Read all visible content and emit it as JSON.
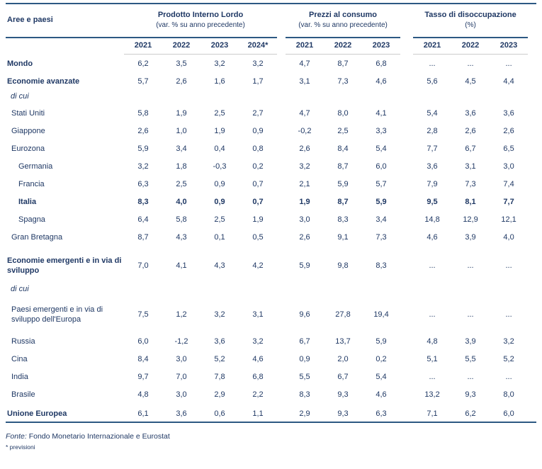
{
  "table": {
    "row_header": "Aree e paesi",
    "groups": [
      {
        "title": "Prodotto Interno Lordo",
        "subtitle": "(var. % su anno precedente)",
        "years": [
          "2021",
          "2022",
          "2023",
          "2024*"
        ]
      },
      {
        "title": "Prezzi al consumo",
        "subtitle": "(var. % su anno precedente)",
        "years": [
          "2021",
          "2022",
          "2023"
        ]
      },
      {
        "title": "Tasso di disoccupazione",
        "subtitle": "(%)",
        "years": [
          "2021",
          "2022",
          "2023"
        ]
      }
    ],
    "rows": [
      {
        "label": "Mondo",
        "style": "section",
        "pil": [
          "6,2",
          "3,5",
          "3,2",
          "3,2"
        ],
        "prezzi": [
          "4,7",
          "8,7",
          "6,8"
        ],
        "tasso": [
          "...",
          "...",
          "..."
        ]
      },
      {
        "label": "Economie avanzate",
        "style": "section",
        "pil": [
          "5,7",
          "2,6",
          "1,6",
          "1,7"
        ],
        "prezzi": [
          "3,1",
          "7,3",
          "4,6"
        ],
        "tasso": [
          "5,6",
          "4,5",
          "4,4"
        ]
      },
      {
        "label": "di cui",
        "style": "note"
      },
      {
        "label": "Stati Uniti",
        "style": "item",
        "pil": [
          "5,8",
          "1,9",
          "2,5",
          "2,7"
        ],
        "prezzi": [
          "4,7",
          "8,0",
          "4,1"
        ],
        "tasso": [
          "5,4",
          "3,6",
          "3,6"
        ]
      },
      {
        "label": "Giappone",
        "style": "item",
        "pil": [
          "2,6",
          "1,0",
          "1,9",
          "0,9"
        ],
        "prezzi": [
          "-0,2",
          "2,5",
          "3,3"
        ],
        "tasso": [
          "2,8",
          "2,6",
          "2,6"
        ]
      },
      {
        "label": "Eurozona",
        "style": "item",
        "pil": [
          "5,9",
          "3,4",
          "0,4",
          "0,8"
        ],
        "prezzi": [
          "2,6",
          "8,4",
          "5,4"
        ],
        "tasso": [
          "7,7",
          "6,7",
          "6,5"
        ]
      },
      {
        "label": "Germania",
        "style": "subitem",
        "pil": [
          "3,2",
          "1,8",
          "-0,3",
          "0,2"
        ],
        "prezzi": [
          "3,2",
          "8,7",
          "6,0"
        ],
        "tasso": [
          "3,6",
          "3,1",
          "3,0"
        ]
      },
      {
        "label": "Francia",
        "style": "subitem",
        "pil": [
          "6,3",
          "2,5",
          "0,9",
          "0,7"
        ],
        "prezzi": [
          "2,1",
          "5,9",
          "5,7"
        ],
        "tasso": [
          "7,9",
          "7,3",
          "7,4"
        ]
      },
      {
        "label": "Italia",
        "style": "subitem",
        "emphasis": true,
        "pil": [
          "8,3",
          "4,0",
          "0,9",
          "0,7"
        ],
        "prezzi": [
          "1,9",
          "8,7",
          "5,9"
        ],
        "tasso": [
          "9,5",
          "8,1",
          "7,7"
        ]
      },
      {
        "label": "Spagna",
        "style": "subitem",
        "pil": [
          "6,4",
          "5,8",
          "2,5",
          "1,9"
        ],
        "prezzi": [
          "3,0",
          "8,3",
          "3,4"
        ],
        "tasso": [
          "14,8",
          "12,9",
          "12,1"
        ]
      },
      {
        "label": "Gran Bretagna",
        "style": "item",
        "pil": [
          "8,7",
          "4,3",
          "0,1",
          "0,5"
        ],
        "prezzi": [
          "2,6",
          "9,1",
          "7,3"
        ],
        "tasso": [
          "4,6",
          "3,9",
          "4,0"
        ]
      },
      {
        "label": "Economie emergenti e in via di sviluppo",
        "style": "section",
        "pil": [
          "7,0",
          "4,1",
          "4,3",
          "4,2"
        ],
        "prezzi": [
          "5,9",
          "9,8",
          "8,3"
        ],
        "tasso": [
          "...",
          "...",
          "..."
        ]
      },
      {
        "label": "di cui",
        "style": "note"
      },
      {
        "label": "Paesi emergenti e in via di sviluppo dell'Europa",
        "style": "item",
        "pil": [
          "7,5",
          "1,2",
          "3,2",
          "3,1"
        ],
        "prezzi": [
          "9,6",
          "27,8",
          "19,4"
        ],
        "tasso": [
          "...",
          "...",
          "..."
        ]
      },
      {
        "label": "Russia",
        "style": "item",
        "pil": [
          "6,0",
          "-1,2",
          "3,6",
          "3,2"
        ],
        "prezzi": [
          "6,7",
          "13,7",
          "5,9"
        ],
        "tasso": [
          "4,8",
          "3,9",
          "3,2"
        ]
      },
      {
        "label": "Cina",
        "style": "item",
        "pil": [
          "8,4",
          "3,0",
          "5,2",
          "4,6"
        ],
        "prezzi": [
          "0,9",
          "2,0",
          "0,2"
        ],
        "tasso": [
          "5,1",
          "5,5",
          "5,2"
        ]
      },
      {
        "label": "India",
        "style": "item",
        "pil": [
          "9,7",
          "7,0",
          "7,8",
          "6,8"
        ],
        "prezzi": [
          "5,5",
          "6,7",
          "5,4"
        ],
        "tasso": [
          "...",
          "...",
          "..."
        ]
      },
      {
        "label": "Brasile",
        "style": "item",
        "pil": [
          "4,8",
          "3,0",
          "2,9",
          "2,2"
        ],
        "prezzi": [
          "8,3",
          "9,3",
          "4,6"
        ],
        "tasso": [
          "13,2",
          "9,3",
          "8,0"
        ]
      },
      {
        "label": "Unione Europea",
        "style": "section",
        "pil": [
          "6,1",
          "3,6",
          "0,6",
          "1,1"
        ],
        "prezzi": [
          "2,9",
          "9,3",
          "6,3"
        ],
        "tasso": [
          "7,1",
          "6,2",
          "6,0"
        ]
      }
    ]
  },
  "footer": {
    "source_label": "Fonte:",
    "source_text": "Fondo Monetario Internazionale e Eurostat",
    "note": "* previsioni"
  },
  "colors": {
    "text": "#1f3864",
    "rule": "#2d5983",
    "light_rule": "#cccccc"
  }
}
